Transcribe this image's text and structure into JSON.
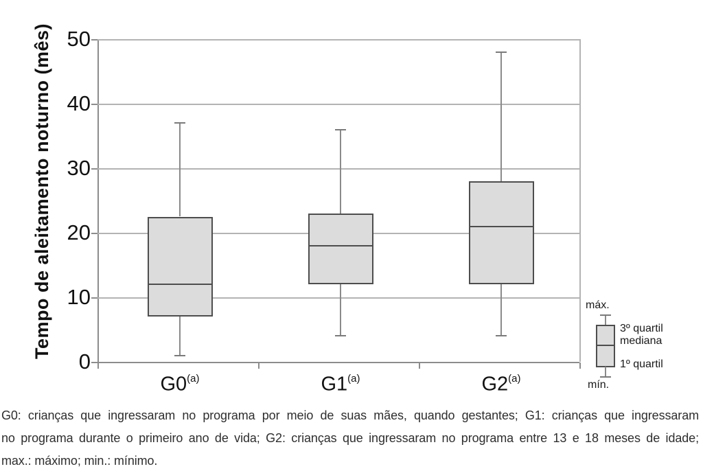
{
  "chart_data": {
    "type": "boxplot",
    "title": "",
    "xlabel": "",
    "ylabel": "Tempo de aleitamento noturno (mês)",
    "ylim": [
      0,
      50
    ],
    "yticks": [
      0,
      10,
      20,
      30,
      40,
      50
    ],
    "grid": true,
    "legend_position": "right-bottom",
    "categories": [
      "G0",
      "G1",
      "G2"
    ],
    "category_superscript": "(a)",
    "series": [
      {
        "name": "G0",
        "min": 1,
        "q1": 7,
        "median": 12,
        "q3": 22.5,
        "max": 37
      },
      {
        "name": "G1",
        "min": 4,
        "q1": 12,
        "median": 18,
        "q3": 23,
        "max": 36
      },
      {
        "name": "G2",
        "min": 4,
        "q1": 12,
        "median": 21,
        "q3": 28,
        "max": 48
      }
    ]
  },
  "legend": {
    "max_label": "máx.",
    "q3_label": "3º quartil",
    "median_label": "mediana",
    "q1_label": "1º quartil",
    "min_label": "mín."
  },
  "caption": {
    "line1": "G0: crianças que ingressaram no programa por meio de suas mães, quando gestantes; G1: crianças que ingressaram",
    "line2": "no programa durante o primeiro ano de vida; G2: crianças que ingressaram no programa entre 13 e 18 meses de idade;",
    "line3": "max.: máximo; min.: mínimo."
  },
  "colors": {
    "box_fill": "#dcdcdc",
    "box_border": "#4d4d4d",
    "median": "#4d4d4d",
    "whisker": "#8a8a8a",
    "whisker_cap": "#7a7a7a",
    "grid": "#b3b3b3",
    "axis": "#8c8c8c",
    "text": "#1a1a1a",
    "background": "#ffffff"
  }
}
